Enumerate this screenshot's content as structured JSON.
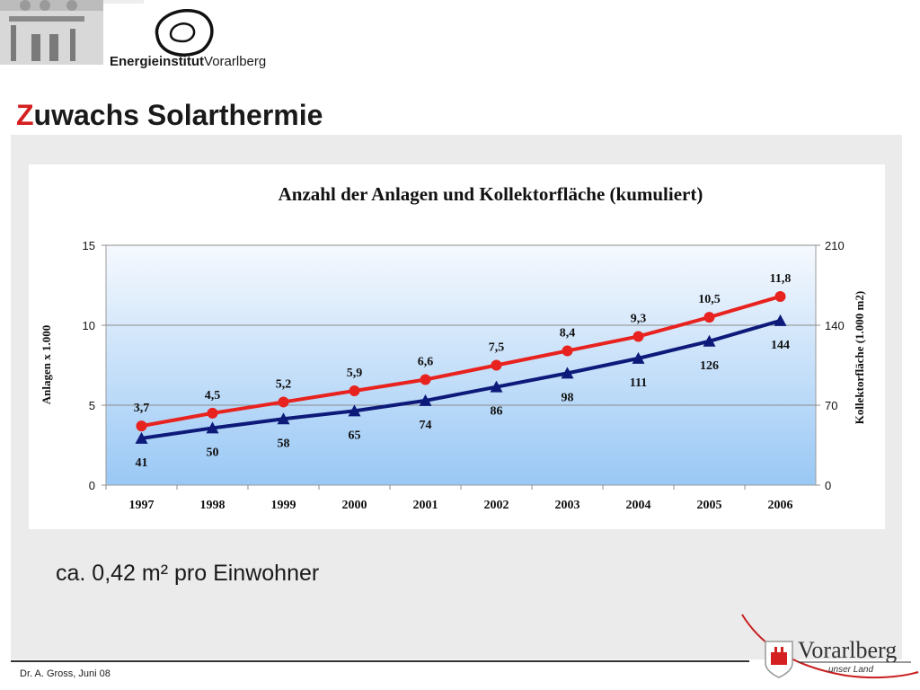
{
  "header": {
    "brand_bold": "Energieinstitut",
    "brand_regular": "Vorarlberg"
  },
  "slide": {
    "title_first_letter": "Z",
    "title_rest": "uwachs Solarthermie",
    "note": "ca. 0,42 m² pro Einwohner"
  },
  "footer": {
    "author_date": "Dr. A. Gross, Juni 08",
    "region_logo_text": "Vorarlberg",
    "region_logo_sub": "unser Land"
  },
  "chart_data": {
    "type": "line",
    "title": "Anzahl der Anlagen und Kollektorfläche (kumuliert)",
    "categories": [
      "1997",
      "1998",
      "1999",
      "2000",
      "2001",
      "2002",
      "2003",
      "2004",
      "2005",
      "2006"
    ],
    "y_left": {
      "label": "Anlagen x 1.000",
      "ticks": [
        "0",
        "5",
        "10",
        "15"
      ],
      "range": [
        0,
        15
      ]
    },
    "y_right": {
      "label": "Kollektorfläche (1.000 m2)",
      "ticks": [
        "0",
        "70",
        "140",
        "210"
      ],
      "range": [
        0,
        210
      ]
    },
    "series": [
      {
        "axis": "left",
        "color": "#e8221e",
        "marker": "circle",
        "values": [
          3.7,
          4.5,
          5.2,
          5.9,
          6.6,
          7.5,
          8.4,
          9.3,
          10.5,
          11.8
        ],
        "labels": [
          "3,7",
          "4,5",
          "5,2",
          "5,9",
          "6,6",
          "7,5",
          "8,4",
          "9,3",
          "10,5",
          "11,8"
        ]
      },
      {
        "axis": "right",
        "color": "#0d1a7a",
        "marker": "triangle",
        "values": [
          41,
          50,
          58,
          65,
          74,
          86,
          98,
          111,
          126,
          144
        ],
        "labels": [
          "41",
          "50",
          "58",
          "65",
          "74",
          "86",
          "98",
          "111",
          "126",
          "144"
        ]
      }
    ],
    "grid": true,
    "legend": "none"
  }
}
